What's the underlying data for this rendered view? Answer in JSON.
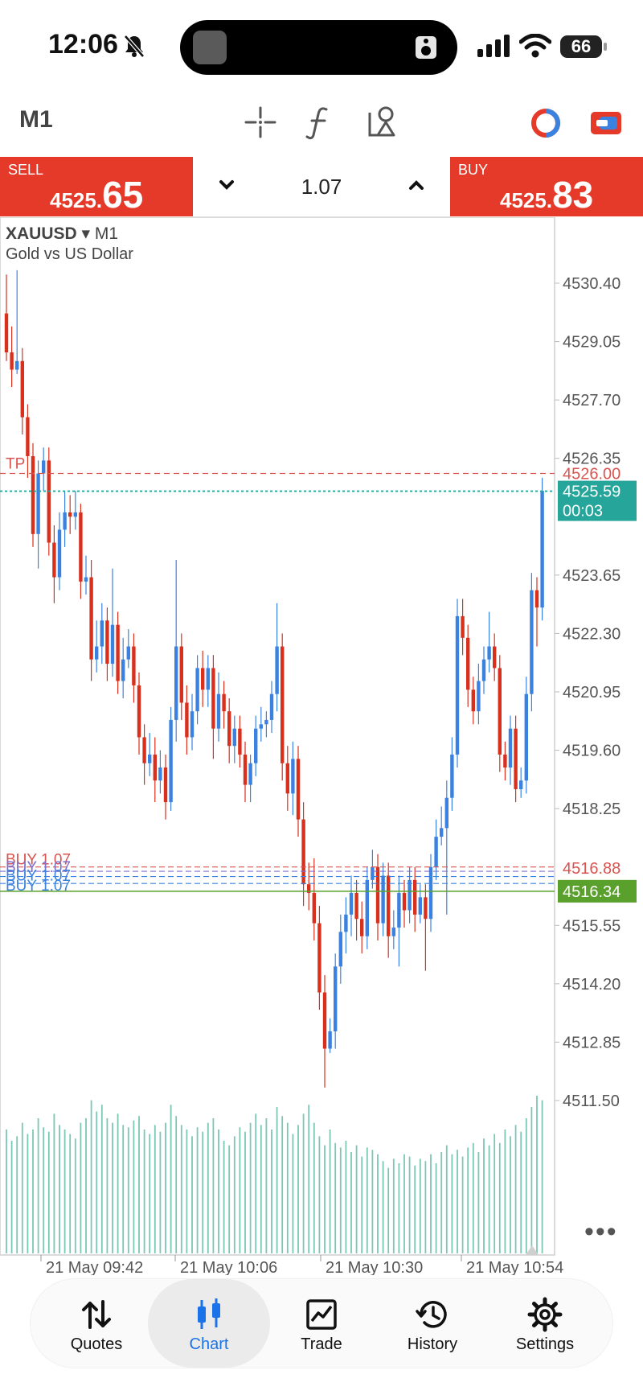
{
  "status": {
    "time": "12:06",
    "battery": "66",
    "icons": [
      "bell-slash-icon",
      "signal-icon",
      "wifi-icon",
      "battery-icon"
    ]
  },
  "toolbar": {
    "timeframe": "M1",
    "icons": [
      "crosshair-icon",
      "indicators-icon",
      "objects-icon",
      "one-click-trading-icon",
      "chart-toggle-icon"
    ]
  },
  "trade": {
    "sell_label": "SELL",
    "sell_price_small": "4525.",
    "sell_price_big": "65",
    "buy_label": "BUY",
    "buy_price_small": "4525.",
    "buy_price_big": "83",
    "lot": "1.07"
  },
  "chart": {
    "symbol": "XAUUSD",
    "symbol_suffix": "▾ M1",
    "description": "Gold vs US Dollar",
    "more": "•••"
  },
  "chart_data": {
    "type": "candlestick",
    "price_axis": [
      "4530.40",
      "4529.05",
      "4527.70",
      "4526.35",
      "4523.65",
      "4522.30",
      "4520.95",
      "4519.60",
      "4518.25",
      "4515.55",
      "4514.20",
      "4512.85",
      "4511.50"
    ],
    "ylim": [
      4510.5,
      4531.0
    ],
    "time_axis": [
      "21 May 09:42",
      "21 May 10:06",
      "21 May 10:30",
      "21 May 10:54"
    ],
    "tp_level": {
      "label": "TP",
      "price": "4526.00",
      "value": 4526.0
    },
    "current_price": {
      "price": "4525.59",
      "countdown": "00:03",
      "value": 4525.59
    },
    "buy_lines": {
      "labels": [
        "BUY 1.07",
        "BUY 1.07",
        "BUY 1.07",
        "BUY 1.07"
      ],
      "values": [
        4516.9,
        4516.8,
        4516.68,
        4516.52
      ]
    },
    "red_marker": {
      "price": "4516.88",
      "value": 4516.88
    },
    "green_marker": {
      "price": "4516.34",
      "value": 4516.34
    },
    "colors": {
      "up": "#3b82e0",
      "down": "#d9301e",
      "volume": "#7cc7b4",
      "tp": "#d9534f",
      "current": "#26a69a",
      "green_marker": "#5aa02c"
    },
    "candles": [
      [
        4529.7,
        4528.8,
        4530.6,
        4528.6
      ],
      [
        4528.8,
        4528.4,
        4529.4,
        4528.0
      ],
      [
        4528.4,
        4528.6,
        4530.7,
        4528.3
      ],
      [
        4528.6,
        4527.3,
        4528.9,
        4526.9
      ],
      [
        4527.3,
        4526.4,
        4527.6,
        4525.9
      ],
      [
        4526.4,
        4524.6,
        4526.7,
        4524.3
      ],
      [
        4524.6,
        4526.0,
        4526.3,
        4523.8
      ],
      [
        4526.0,
        4526.3,
        4526.6,
        4525.6
      ],
      [
        4526.3,
        4524.4,
        4526.6,
        4524.1
      ],
      [
        4524.4,
        4523.6,
        4524.8,
        4523.0
      ],
      [
        4523.6,
        4524.7,
        4525.1,
        4523.3
      ],
      [
        4524.7,
        4525.1,
        4525.6,
        4524.3
      ],
      [
        4525.1,
        4525.0,
        4525.5,
        4524.6
      ],
      [
        4525.0,
        4525.1,
        4525.6,
        4524.7
      ],
      [
        4525.1,
        4523.5,
        4525.3,
        4523.1
      ],
      [
        4523.5,
        4523.6,
        4524.1,
        4523.2
      ],
      [
        4523.6,
        4521.7,
        4524.0,
        4521.2
      ],
      [
        4521.7,
        4522.0,
        4522.6,
        4521.4
      ],
      [
        4522.0,
        4522.6,
        4523.0,
        4521.6
      ],
      [
        4522.6,
        4521.6,
        4522.9,
        4521.2
      ],
      [
        4521.6,
        4522.5,
        4523.8,
        4521.3
      ],
      [
        4522.5,
        4521.2,
        4522.8,
        4520.9
      ],
      [
        4521.2,
        4521.7,
        4522.2,
        4520.8
      ],
      [
        4521.7,
        4522.0,
        4522.4,
        4521.5
      ],
      [
        4522.0,
        4521.1,
        4522.3,
        4520.7
      ],
      [
        4521.1,
        4519.9,
        4521.4,
        4519.5
      ],
      [
        4519.9,
        4519.3,
        4520.2,
        4518.8
      ],
      [
        4519.3,
        4519.5,
        4520.0,
        4519.0
      ],
      [
        4519.5,
        4518.9,
        4519.9,
        4518.4
      ],
      [
        4518.9,
        4519.2,
        4519.6,
        4518.6
      ],
      [
        4519.2,
        4518.4,
        4519.5,
        4518.0
      ],
      [
        4518.4,
        4520.3,
        4520.6,
        4518.2
      ],
      [
        4520.3,
        4522.0,
        4524.0,
        4519.8
      ],
      [
        4522.0,
        4520.7,
        4522.3,
        4520.3
      ],
      [
        4520.7,
        4519.9,
        4521.1,
        4519.5
      ],
      [
        4519.9,
        4520.5,
        4520.9,
        4519.6
      ],
      [
        4520.5,
        4521.5,
        4521.8,
        4520.2
      ],
      [
        4521.5,
        4521.0,
        4521.9,
        4520.6
      ],
      [
        4521.0,
        4521.5,
        4521.8,
        4520.6
      ],
      [
        4521.5,
        4520.1,
        4521.8,
        4519.4
      ],
      [
        4520.1,
        4520.9,
        4521.4,
        4519.8
      ],
      [
        4520.9,
        4520.5,
        4521.2,
        4520.1
      ],
      [
        4520.5,
        4519.7,
        4520.8,
        4519.3
      ],
      [
        4519.7,
        4520.1,
        4520.4,
        4519.3
      ],
      [
        4520.1,
        4519.5,
        4520.4,
        4519.2
      ],
      [
        4519.5,
        4518.8,
        4519.8,
        4518.4
      ],
      [
        4518.8,
        4519.3,
        4519.5,
        4518.4
      ],
      [
        4519.3,
        4520.1,
        4520.4,
        4519.0
      ],
      [
        4520.1,
        4520.2,
        4520.6,
        4519.8
      ],
      [
        4520.2,
        4520.3,
        4520.5,
        4519.9
      ],
      [
        4520.3,
        4520.9,
        4521.2,
        4520.0
      ],
      [
        4520.9,
        4522.0,
        4523.0,
        4520.5
      ],
      [
        4522.0,
        4519.3,
        4522.3,
        4518.9
      ],
      [
        4519.3,
        4518.6,
        4519.7,
        4518.2
      ],
      [
        4518.6,
        4519.4,
        4519.8,
        4518.1
      ],
      [
        4519.4,
        4518.0,
        4519.7,
        4517.6
      ],
      [
        4518.0,
        4516.5,
        4518.4,
        4516.0
      ],
      [
        4516.5,
        4516.3,
        4517.0,
        4515.9
      ],
      [
        4516.3,
        4515.6,
        4517.1,
        4515.2
      ],
      [
        4515.6,
        4514.0,
        4516.0,
        4513.6
      ],
      [
        4514.0,
        4512.7,
        4514.4,
        4511.8
      ],
      [
        4512.7,
        4513.1,
        4513.4,
        4512.6
      ],
      [
        4513.1,
        4514.6,
        4514.9,
        4512.7
      ],
      [
        4514.6,
        4515.4,
        4515.8,
        4514.2
      ],
      [
        4515.4,
        4515.8,
        4516.2,
        4514.9
      ],
      [
        4515.8,
        4516.3,
        4516.7,
        4515.3
      ],
      [
        4516.3,
        4515.7,
        4516.6,
        4515.2
      ],
      [
        4515.7,
        4515.3,
        4516.1,
        4514.9
      ],
      [
        4515.3,
        4516.6,
        4516.9,
        4515.0
      ],
      [
        4516.6,
        4516.9,
        4517.3,
        4516.4
      ],
      [
        4516.9,
        4515.6,
        4517.2,
        4515.2
      ],
      [
        4515.6,
        4516.7,
        4517.0,
        4515.3
      ],
      [
        4516.7,
        4515.3,
        4517.0,
        4514.8
      ],
      [
        4515.3,
        4515.5,
        4515.9,
        4515.0
      ],
      [
        4515.5,
        4516.3,
        4516.7,
        4514.6
      ],
      [
        4516.3,
        4515.9,
        4516.6,
        4515.5
      ],
      [
        4515.9,
        4516.6,
        4516.9,
        4515.6
      ],
      [
        4516.6,
        4515.8,
        4516.9,
        4515.4
      ],
      [
        4515.8,
        4516.2,
        4516.5,
        4515.6
      ],
      [
        4516.2,
        4515.7,
        4516.5,
        4514.5
      ],
      [
        4515.7,
        4516.9,
        4517.2,
        4515.4
      ],
      [
        4516.9,
        4517.6,
        4518.0,
        4516.6
      ],
      [
        4517.6,
        4517.8,
        4518.3,
        4517.4
      ],
      [
        4517.8,
        4518.5,
        4518.9,
        4515.8
      ],
      [
        4518.5,
        4519.5,
        4519.9,
        4518.2
      ],
      [
        4519.5,
        4522.7,
        4523.1,
        4519.2
      ],
      [
        4522.7,
        4522.2,
        4523.1,
        4521.8
      ],
      [
        4522.2,
        4521.0,
        4522.5,
        4520.6
      ],
      [
        4521.0,
        4520.5,
        4521.3,
        4520.2
      ],
      [
        4520.5,
        4521.2,
        4521.6,
        4520.2
      ],
      [
        4521.2,
        4521.7,
        4522.0,
        4520.9
      ],
      [
        4521.7,
        4522.0,
        4522.8,
        4521.4
      ],
      [
        4522.0,
        4521.5,
        4522.3,
        4521.2
      ],
      [
        4521.5,
        4519.5,
        4521.8,
        4519.1
      ],
      [
        4519.5,
        4519.2,
        4519.8,
        4518.9
      ],
      [
        4519.2,
        4520.1,
        4520.4,
        4518.8
      ],
      [
        4520.1,
        4518.7,
        4520.4,
        4518.4
      ],
      [
        4518.7,
        4518.9,
        4519.2,
        4518.5
      ],
      [
        4518.9,
        4520.9,
        4521.3,
        4518.6
      ],
      [
        4520.9,
        4523.3,
        4523.7,
        4520.5
      ],
      [
        4523.3,
        4522.9,
        4523.6,
        4522.0
      ],
      [
        4522.9,
        4525.6,
        4525.9,
        4522.6
      ]
    ],
    "volume": [
      0.55,
      0.5,
      0.52,
      0.58,
      0.53,
      0.55,
      0.6,
      0.56,
      0.54,
      0.62,
      0.57,
      0.55,
      0.53,
      0.51,
      0.58,
      0.6,
      0.68,
      0.63,
      0.66,
      0.6,
      0.58,
      0.62,
      0.57,
      0.56,
      0.59,
      0.61,
      0.55,
      0.53,
      0.57,
      0.54,
      0.58,
      0.66,
      0.61,
      0.57,
      0.55,
      0.52,
      0.56,
      0.54,
      0.58,
      0.6,
      0.55,
      0.5,
      0.48,
      0.52,
      0.56,
      0.54,
      0.58,
      0.62,
      0.57,
      0.6,
      0.55,
      0.65,
      0.61,
      0.58,
      0.53,
      0.57,
      0.62,
      0.66,
      0.58,
      0.52,
      0.48,
      0.55,
      0.49,
      0.47,
      0.5,
      0.45,
      0.48,
      0.43,
      0.47,
      0.46,
      0.44,
      0.41,
      0.38,
      0.42,
      0.4,
      0.44,
      0.43,
      0.39,
      0.42,
      0.41,
      0.44,
      0.4,
      0.45,
      0.48,
      0.44,
      0.46,
      0.43,
      0.47,
      0.49,
      0.45,
      0.51,
      0.48,
      0.53,
      0.49,
      0.55,
      0.52,
      0.57,
      0.54,
      0.6,
      0.65,
      0.7,
      0.68
    ]
  },
  "nav": [
    {
      "label": "Quotes",
      "icon": "arrows-updown-icon"
    },
    {
      "label": "Chart",
      "icon": "candles-icon"
    },
    {
      "label": "Trade",
      "icon": "trade-chart-icon"
    },
    {
      "label": "History",
      "icon": "history-icon"
    },
    {
      "label": "Settings",
      "icon": "gear-icon"
    }
  ]
}
